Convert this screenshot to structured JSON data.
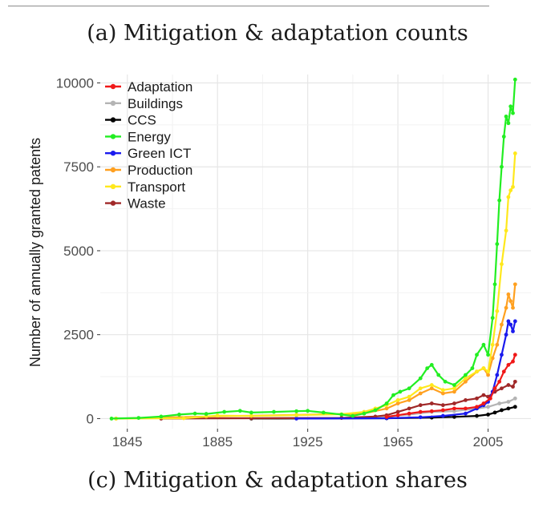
{
  "captions": {
    "top": "(a) Mitigation & adaptation counts",
    "bottom": "(c) Mitigation & adaptation shares"
  },
  "chart_data": {
    "type": "line",
    "title": "(a) Mitigation & adaptation counts",
    "xlabel": "",
    "ylabel": "Number of annually granted patents",
    "xlim": [
      1833,
      2024
    ],
    "ylim": [
      -300,
      10250
    ],
    "x_ticks": [
      1845,
      1885,
      1925,
      1965,
      2005
    ],
    "y_ticks": [
      0,
      2500,
      5000,
      7500,
      10000
    ],
    "grid": true,
    "legend_position": "top-left",
    "series": [
      {
        "name": "Adaptation",
        "color": "#f01818",
        "points": [
          [
            1960,
            50
          ],
          [
            1965,
            100
          ],
          [
            1970,
            150
          ],
          [
            1975,
            200
          ],
          [
            1980,
            220
          ],
          [
            1985,
            250
          ],
          [
            1990,
            300
          ],
          [
            1995,
            300
          ],
          [
            2000,
            350
          ],
          [
            2003,
            450
          ],
          [
            2006,
            600
          ],
          [
            2008,
            900
          ],
          [
            2010,
            1100
          ],
          [
            2012,
            1400
          ],
          [
            2014,
            1600
          ],
          [
            2016,
            1700
          ],
          [
            2017,
            1900
          ]
        ]
      },
      {
        "name": "Buildings",
        "color": "#b4b4b4",
        "points": [
          [
            1860,
            0
          ],
          [
            1900,
            10
          ],
          [
            1940,
            20
          ],
          [
            1960,
            60
          ],
          [
            1970,
            120
          ],
          [
            1980,
            200
          ],
          [
            1990,
            220
          ],
          [
            2000,
            300
          ],
          [
            2005,
            350
          ],
          [
            2010,
            450
          ],
          [
            2014,
            500
          ],
          [
            2017,
            600
          ]
        ]
      },
      {
        "name": "CCS",
        "color": "#000000",
        "points": [
          [
            1900,
            0
          ],
          [
            1960,
            10
          ],
          [
            1980,
            30
          ],
          [
            1990,
            50
          ],
          [
            2000,
            80
          ],
          [
            2005,
            120
          ],
          [
            2008,
            180
          ],
          [
            2011,
            250
          ],
          [
            2014,
            300
          ],
          [
            2017,
            350
          ]
        ]
      },
      {
        "name": "Energy",
        "color": "#22ee22",
        "points": [
          [
            1838,
            0
          ],
          [
            1850,
            20
          ],
          [
            1860,
            60
          ],
          [
            1868,
            120
          ],
          [
            1875,
            150
          ],
          [
            1880,
            140
          ],
          [
            1888,
            200
          ],
          [
            1895,
            230
          ],
          [
            1900,
            180
          ],
          [
            1910,
            200
          ],
          [
            1920,
            220
          ],
          [
            1925,
            230
          ],
          [
            1932,
            180
          ],
          [
            1940,
            120
          ],
          [
            1945,
            80
          ],
          [
            1950,
            150
          ],
          [
            1955,
            250
          ],
          [
            1960,
            450
          ],
          [
            1963,
            700
          ],
          [
            1966,
            800
          ],
          [
            1970,
            900
          ],
          [
            1975,
            1200
          ],
          [
            1978,
            1500
          ],
          [
            1980,
            1600
          ],
          [
            1983,
            1300
          ],
          [
            1986,
            1100
          ],
          [
            1990,
            1000
          ],
          [
            1995,
            1300
          ],
          [
            1998,
            1500
          ],
          [
            2000,
            1900
          ],
          [
            2003,
            2200
          ],
          [
            2005,
            1900
          ],
          [
            2007,
            3000
          ],
          [
            2008,
            4000
          ],
          [
            2009,
            5200
          ],
          [
            2010,
            6500
          ],
          [
            2011,
            7500
          ],
          [
            2012,
            8400
          ],
          [
            2013,
            9000
          ],
          [
            2014,
            8800
          ],
          [
            2015,
            9300
          ],
          [
            2016,
            9100
          ],
          [
            2017,
            10100
          ]
        ]
      },
      {
        "name": "Green ICT",
        "color": "#1a1aee",
        "points": [
          [
            1920,
            0
          ],
          [
            1960,
            10
          ],
          [
            1975,
            40
          ],
          [
            1985,
            80
          ],
          [
            1995,
            150
          ],
          [
            2000,
            300
          ],
          [
            2003,
            400
          ],
          [
            2005,
            500
          ],
          [
            2007,
            800
          ],
          [
            2009,
            1300
          ],
          [
            2011,
            1900
          ],
          [
            2013,
            2500
          ],
          [
            2014,
            2900
          ],
          [
            2015,
            2800
          ],
          [
            2016,
            2600
          ],
          [
            2017,
            2900
          ]
        ]
      },
      {
        "name": "Production",
        "color": "#ffa020",
        "points": [
          [
            1840,
            0
          ],
          [
            1880,
            60
          ],
          [
            1920,
            110
          ],
          [
            1950,
            150
          ],
          [
            1960,
            300
          ],
          [
            1965,
            450
          ],
          [
            1970,
            550
          ],
          [
            1975,
            750
          ],
          [
            1980,
            900
          ],
          [
            1985,
            750
          ],
          [
            1990,
            800
          ],
          [
            1995,
            1100
          ],
          [
            2000,
            1400
          ],
          [
            2003,
            1500
          ],
          [
            2005,
            1300
          ],
          [
            2007,
            1800
          ],
          [
            2009,
            2200
          ],
          [
            2011,
            2800
          ],
          [
            2013,
            3300
          ],
          [
            2014,
            3700
          ],
          [
            2015,
            3500
          ],
          [
            2016,
            3300
          ],
          [
            2017,
            4000
          ]
        ]
      },
      {
        "name": "Transport",
        "color": "#ffe81c",
        "points": [
          [
            1840,
            0
          ],
          [
            1870,
            10
          ],
          [
            1885,
            90
          ],
          [
            1900,
            80
          ],
          [
            1920,
            100
          ],
          [
            1940,
            130
          ],
          [
            1950,
            200
          ],
          [
            1955,
            300
          ],
          [
            1960,
            400
          ],
          [
            1965,
            550
          ],
          [
            1970,
            650
          ],
          [
            1975,
            900
          ],
          [
            1980,
            1000
          ],
          [
            1985,
            850
          ],
          [
            1990,
            900
          ],
          [
            1995,
            1200
          ],
          [
            2000,
            1400
          ],
          [
            2003,
            1500
          ],
          [
            2005,
            1400
          ],
          [
            2007,
            2200
          ],
          [
            2009,
            3200
          ],
          [
            2011,
            4600
          ],
          [
            2013,
            5600
          ],
          [
            2014,
            6600
          ],
          [
            2015,
            6800
          ],
          [
            2016,
            6900
          ],
          [
            2017,
            7900
          ]
        ]
      },
      {
        "name": "Waste",
        "color": "#a02828",
        "points": [
          [
            1860,
            0
          ],
          [
            1900,
            10
          ],
          [
            1940,
            20
          ],
          [
            1955,
            60
          ],
          [
            1960,
            100
          ],
          [
            1965,
            200
          ],
          [
            1970,
            300
          ],
          [
            1975,
            400
          ],
          [
            1980,
            450
          ],
          [
            1985,
            400
          ],
          [
            1990,
            450
          ],
          [
            1995,
            550
          ],
          [
            2000,
            600
          ],
          [
            2003,
            700
          ],
          [
            2005,
            650
          ],
          [
            2008,
            800
          ],
          [
            2011,
            900
          ],
          [
            2014,
            1000
          ],
          [
            2016,
            950
          ],
          [
            2017,
            1100
          ]
        ]
      }
    ]
  }
}
